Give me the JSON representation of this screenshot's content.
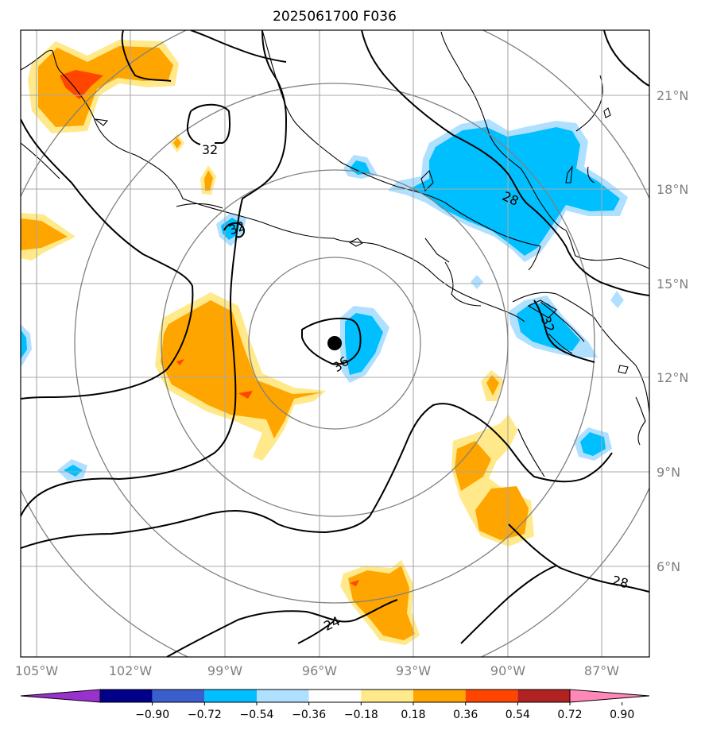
{
  "title": "2025061700 F036",
  "longitude_ticks": [
    "105°W",
    "102°W",
    "99°W",
    "96°W",
    "93°W",
    "90°W",
    "87°W"
  ],
  "latitude_ticks": [
    "21°N",
    "18°N",
    "15°N",
    "12°N",
    "9°N",
    "6°N"
  ],
  "contour_labels": [
    {
      "text": "32",
      "note": "upper-left closed contour"
    },
    {
      "text": "32",
      "note": "small closed contour near 99°W 17°N"
    },
    {
      "text": "28",
      "note": "north-east over Yucatán"
    },
    {
      "text": "32",
      "note": "Guatemala coast"
    },
    {
      "text": "36",
      "note": "center low"
    },
    {
      "text": "24",
      "note": "south"
    },
    {
      "text": "28",
      "note": "south-east edge"
    }
  ],
  "colorbar": {
    "levels": [
      "−0.90",
      "−0.72",
      "−0.54",
      "−0.36",
      "−0.18",
      "0.18",
      "0.36",
      "0.54",
      "0.72",
      "0.90"
    ],
    "colors": [
      "#9932cc",
      "#00008b",
      "#3a5fcd",
      "#00bfff",
      "#b0e0ff",
      "#ffffff",
      "#ffe98a",
      "#ffa500",
      "#ff4500",
      "#b22222",
      "#ff88b8"
    ]
  },
  "storm_center": {
    "lon": -95.5,
    "lat": 13.1
  },
  "colors": {
    "frame": "#000000",
    "grid": "#a8a8a8",
    "ring": "#808080",
    "tick_label": "#808080"
  }
}
